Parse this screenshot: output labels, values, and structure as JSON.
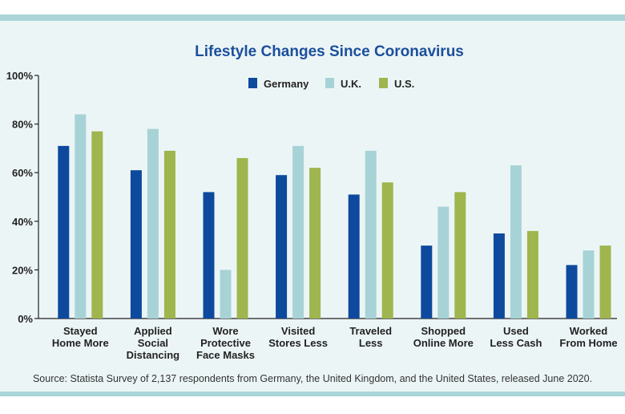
{
  "chart_data": {
    "type": "bar",
    "title": "Lifestyle Changes Since Coronavirus",
    "categories": [
      [
        "Stayed",
        "Home More"
      ],
      [
        "Applied",
        "Social",
        "Distancing"
      ],
      [
        "Wore",
        "Protective",
        "Face Masks"
      ],
      [
        "Visited",
        "Stores Less"
      ],
      [
        "Traveled",
        "Less"
      ],
      [
        "Shopped",
        "Online More"
      ],
      [
        "Used",
        "Less Cash"
      ],
      [
        "Worked",
        "From Home"
      ]
    ],
    "series": [
      {
        "name": "Germany",
        "color": "#0d4a9e",
        "values": [
          71,
          61,
          52,
          59,
          51,
          30,
          35,
          22
        ]
      },
      {
        "name": "U.K.",
        "color": "#a7d3d6",
        "values": [
          84,
          78,
          20,
          71,
          69,
          46,
          63,
          28
        ]
      },
      {
        "name": "U.S.",
        "color": "#9fb54e",
        "values": [
          77,
          69,
          66,
          62,
          56,
          52,
          36,
          30
        ]
      }
    ],
    "y_ticks": [
      "0%",
      "20%",
      "40%",
      "60%",
      "80%",
      "100%"
    ],
    "ylim": [
      0,
      100
    ],
    "legend_position": "top-center",
    "grid": false,
    "source": "Source: Statista Survey of 2,137 respondents from Germany, the United Kingdom, and the United States, released June 2020."
  }
}
